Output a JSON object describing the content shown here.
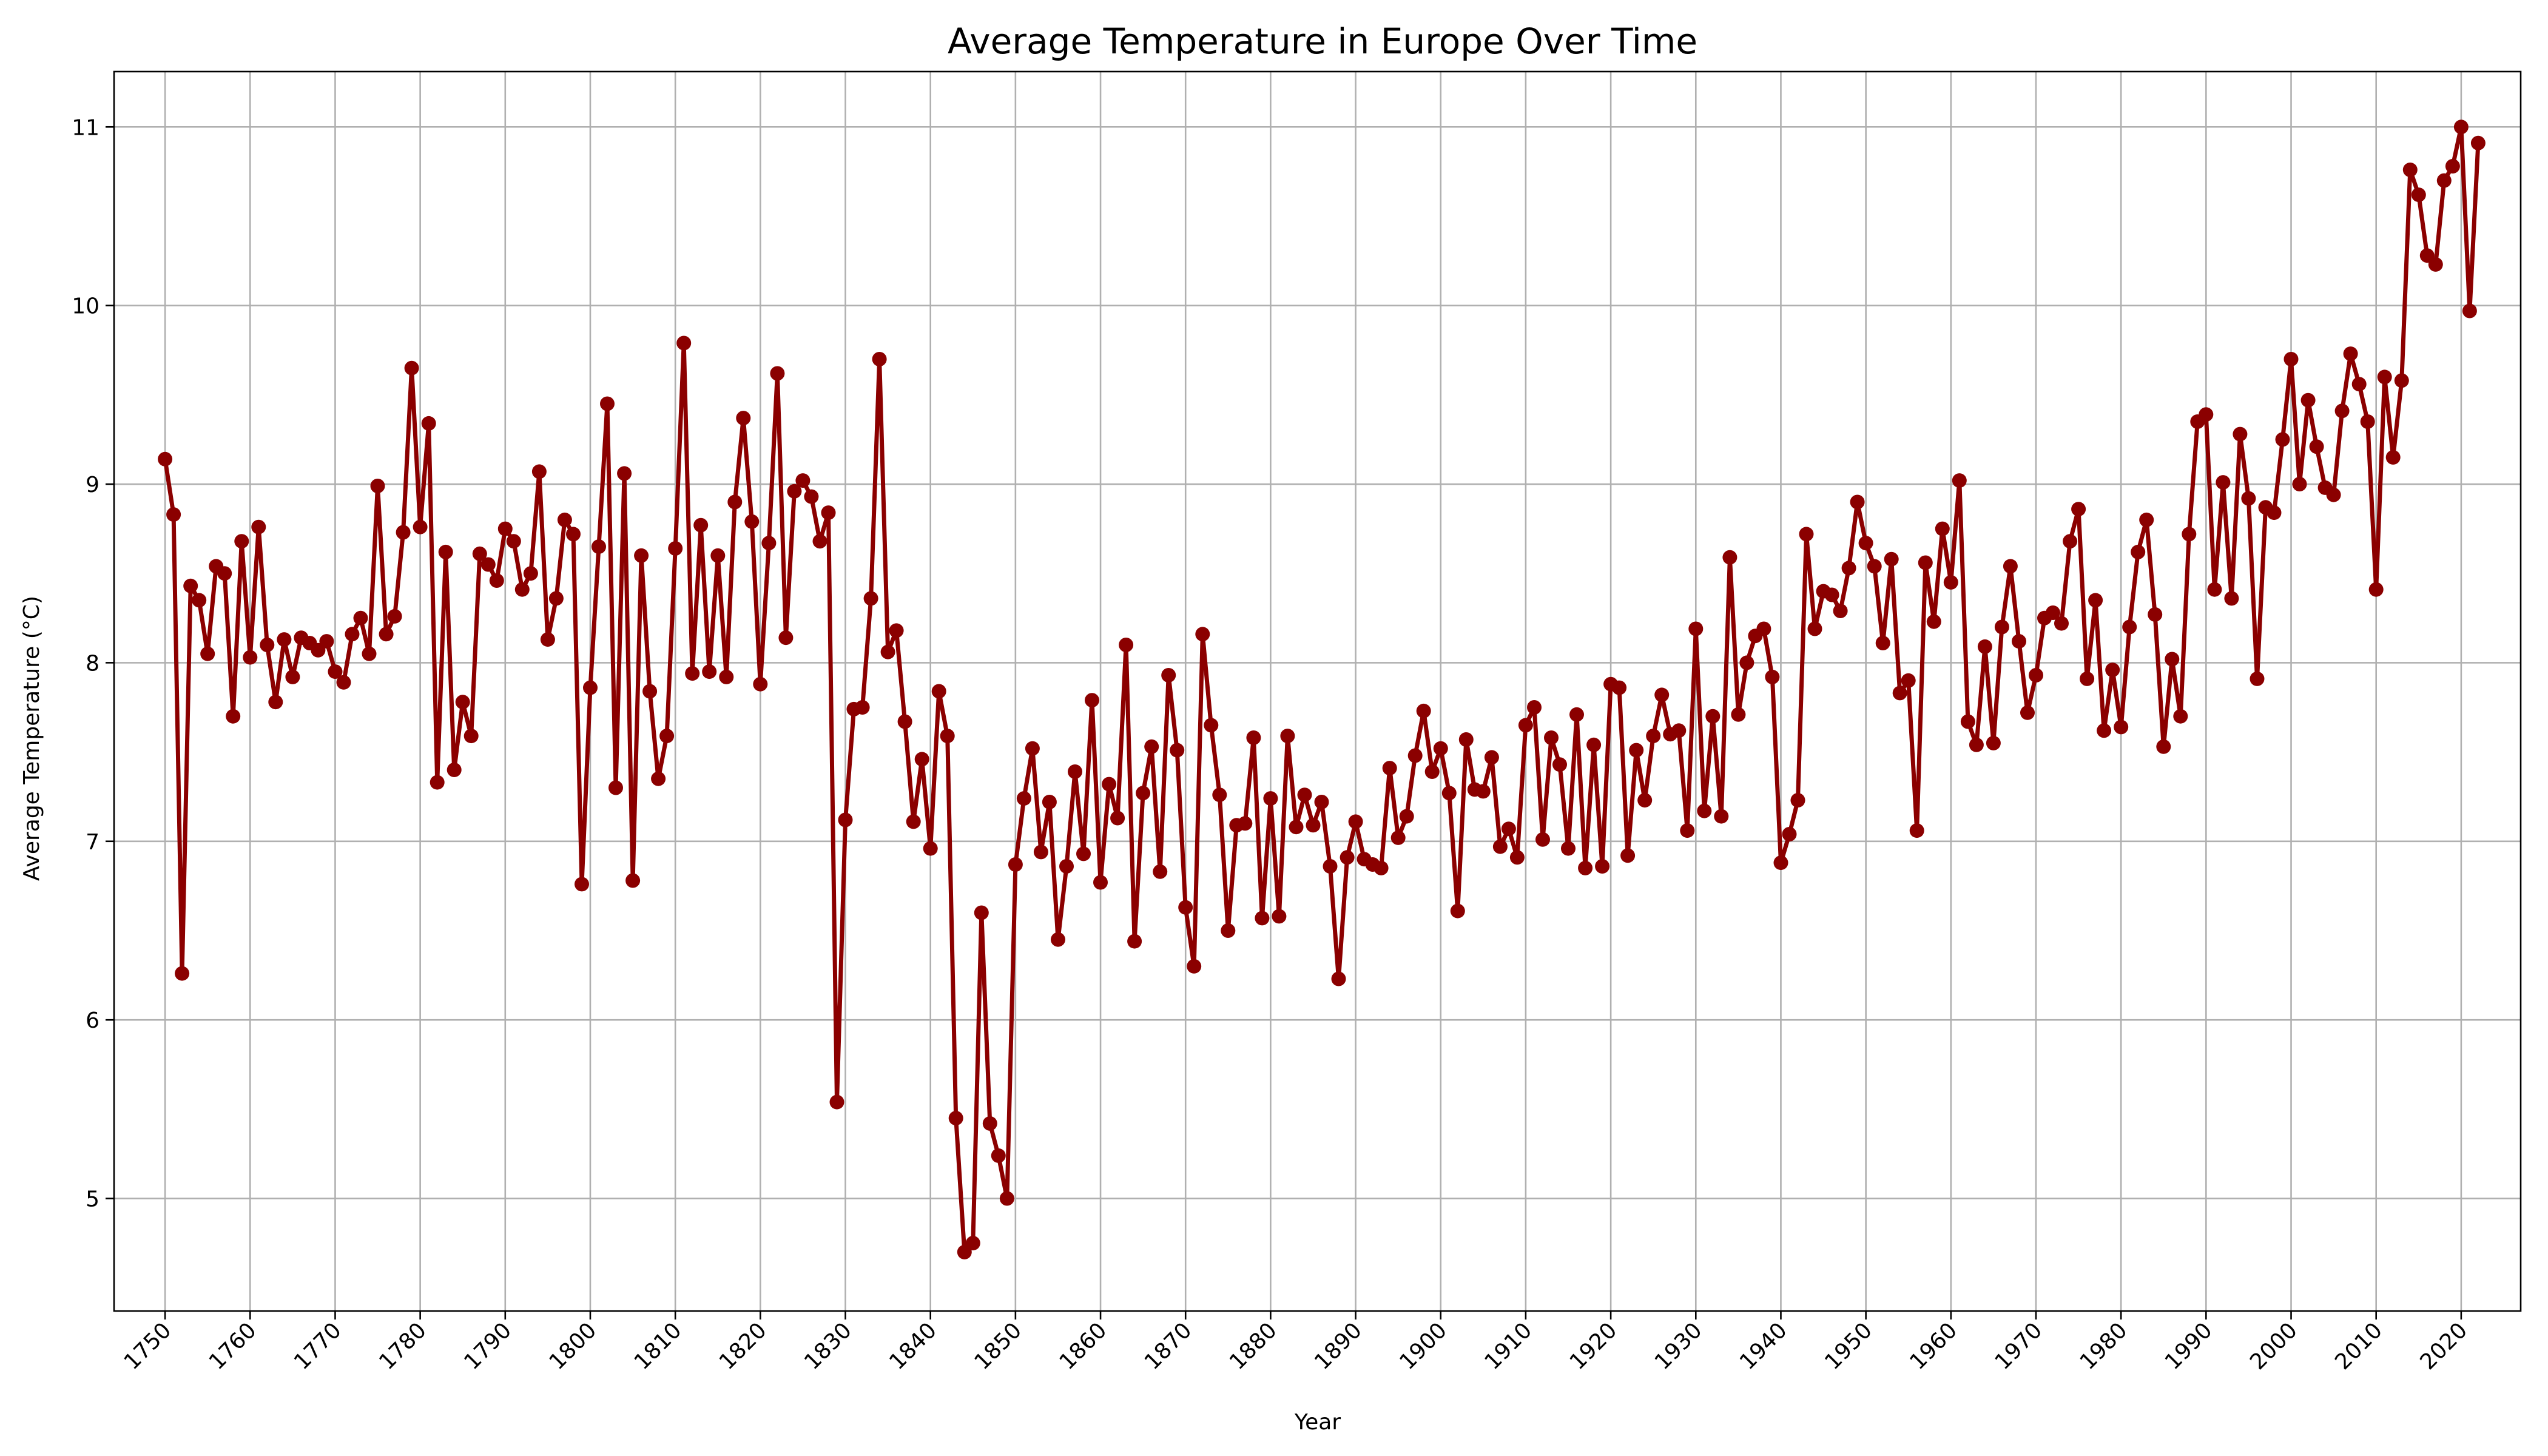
{
  "chart_data": {
    "type": "line",
    "title": "Average Temperature in Europe Over Time",
    "xlabel": "Year",
    "ylabel": "Average Temperature (°C)",
    "xlim": [
      1744,
      2027
    ],
    "ylim": [
      4.37,
      11.31
    ],
    "xticks": [
      "1750",
      "1760",
      "1770",
      "1780",
      "1790",
      "1800",
      "1810",
      "1820",
      "1830",
      "1840",
      "1850",
      "1860",
      "1870",
      "1880",
      "1890",
      "1900",
      "1910",
      "1920",
      "1930",
      "1940",
      "1950",
      "1960",
      "1970",
      "1980",
      "1990",
      "2000",
      "2010",
      "2020"
    ],
    "yticks": [
      "5",
      "6",
      "7",
      "8",
      "9",
      "10",
      "11"
    ],
    "grid": true,
    "line_color": "#8b0000",
    "marker": "circle",
    "series": [
      {
        "x_start": 1750,
        "x_step": 1,
        "values": [
          9.14,
          8.83,
          6.26,
          8.43,
          8.35,
          8.05,
          8.54,
          8.5,
          7.7,
          8.68,
          8.03,
          8.76,
          8.1,
          7.78,
          8.13,
          7.92,
          8.14,
          8.11,
          8.07,
          8.12,
          7.95,
          7.89,
          8.16,
          8.25,
          8.05,
          8.99,
          8.16,
          8.26,
          8.73,
          9.65,
          8.76,
          9.34,
          7.33,
          8.62,
          7.4,
          7.78,
          7.59,
          8.61,
          8.55,
          8.46,
          8.75,
          8.68,
          8.41,
          8.5,
          9.07,
          8.13,
          8.36,
          8.8,
          8.72,
          6.76,
          7.86,
          8.65,
          9.45,
          7.3,
          9.06,
          6.78,
          8.6,
          7.84,
          7.35,
          7.59,
          8.64,
          9.79,
          7.94,
          8.77,
          7.95,
          8.6,
          7.92,
          8.9,
          9.37,
          8.79,
          7.88,
          8.67,
          9.62,
          8.14,
          8.96,
          9.02,
          8.93,
          8.68,
          8.84,
          5.54,
          7.12,
          7.74,
          7.75,
          8.36,
          9.7,
          8.06,
          8.18,
          7.67,
          7.11,
          7.46,
          6.96,
          7.84,
          7.59,
          5.45,
          4.7,
          4.75,
          6.6,
          5.42,
          5.24,
          5.0,
          6.87,
          7.24,
          7.52,
          6.94,
          7.22,
          6.45,
          6.86,
          7.39,
          6.93,
          7.79,
          6.77,
          7.32,
          7.13,
          8.1,
          6.44,
          7.27,
          7.53,
          6.83,
          7.93,
          7.51,
          6.63,
          6.3,
          8.16,
          7.65,
          7.26,
          6.5,
          7.09,
          7.1,
          7.58,
          6.57,
          7.24,
          6.58,
          7.59,
          7.08,
          7.26,
          7.09,
          7.22,
          6.86,
          6.23,
          6.91,
          7.11,
          6.9,
          6.87,
          6.85,
          7.41,
          7.02,
          7.14,
          7.48,
          7.73,
          7.39,
          7.52,
          7.27,
          6.61,
          7.57,
          7.29,
          7.28,
          7.47,
          6.97,
          7.07,
          6.91,
          7.65,
          7.75,
          7.01,
          7.58,
          7.43,
          6.96,
          7.71,
          6.85,
          7.54,
          6.86,
          7.88,
          7.86,
          6.92,
          7.51,
          7.23,
          7.59,
          7.82,
          7.6,
          7.62,
          7.06,
          8.19,
          7.17,
          7.7,
          7.14,
          8.59,
          7.71,
          8.0,
          8.15,
          8.19,
          7.92,
          6.88,
          7.04,
          7.23,
          8.72,
          8.19,
          8.4,
          8.38,
          8.29,
          8.53,
          8.9,
          8.67,
          8.54,
          8.11,
          8.58,
          7.83,
          7.9,
          7.06,
          8.56,
          8.23,
          8.75,
          8.45,
          9.02,
          7.67,
          7.54,
          8.09,
          7.55,
          8.2,
          8.54,
          8.12,
          7.72,
          7.93,
          8.25,
          8.28,
          8.22,
          8.68,
          8.86,
          7.91,
          8.35,
          7.62,
          7.96,
          7.64,
          8.2,
          8.62,
          8.8,
          8.27,
          7.53,
          8.02,
          7.7,
          8.72,
          9.35,
          9.39,
          8.41,
          9.01,
          8.36,
          9.28,
          8.92,
          7.91,
          8.87,
          8.84,
          9.25,
          9.7,
          9.0,
          9.47,
          9.21,
          8.98,
          8.94,
          9.41,
          9.73,
          9.56,
          9.35,
          8.41,
          9.6,
          9.15,
          9.58,
          10.76,
          10.62,
          10.28,
          10.23,
          10.7,
          10.78,
          11.0,
          9.97,
          10.91
        ]
      }
    ]
  }
}
